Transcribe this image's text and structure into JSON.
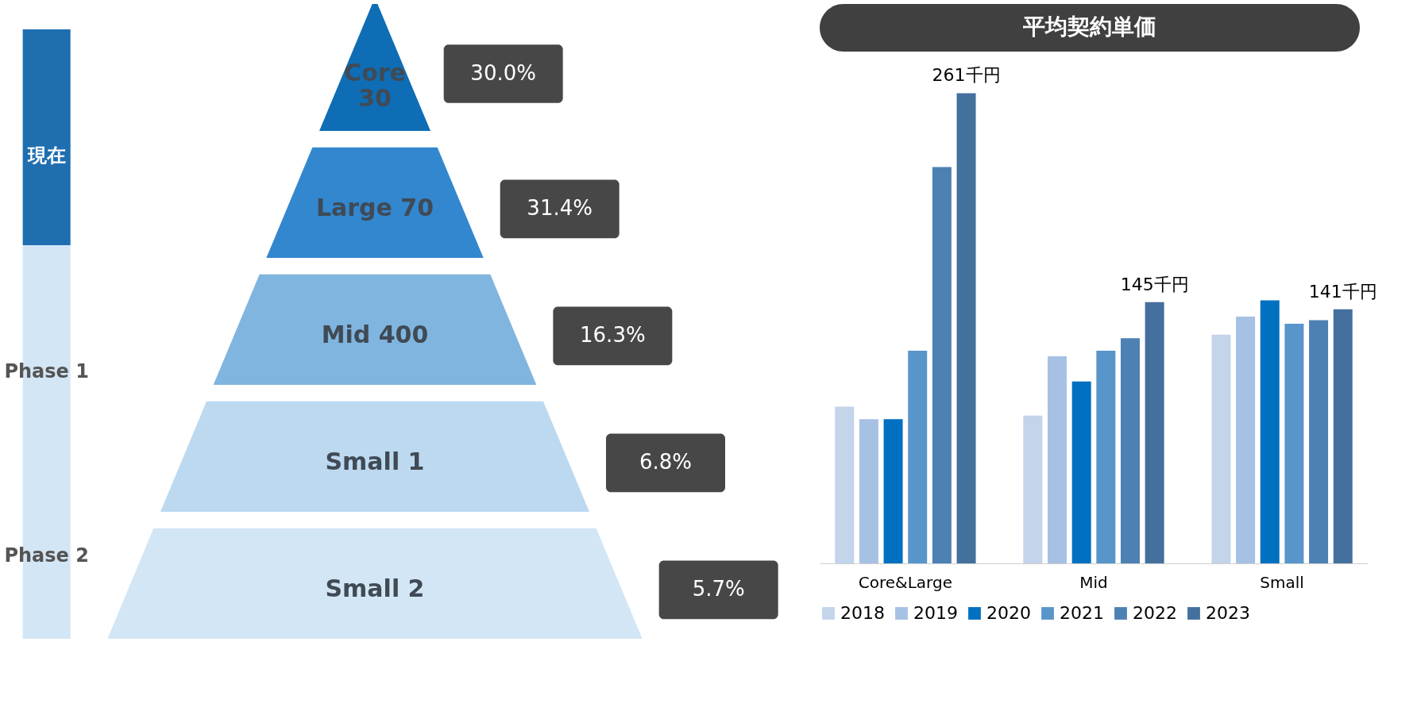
{
  "chart_data": [
    {
      "type": "other",
      "categories": [
        "Core\n30",
        "Large 70",
        "Mid 400",
        "Small 1",
        "Small 2"
      ],
      "value_labels": [
        "30.0%",
        "31.4%",
        "16.3%",
        "6.8%",
        "5.7%"
      ],
      "colors": [
        "#0e6db5",
        "#3287cf",
        "#80b5df",
        "#bcd9f0",
        "#d3e6f6"
      ],
      "annotations": [
        "現在",
        "Phase 1",
        "Phase 2"
      ]
    },
    {
      "type": "bar",
      "title": "平均契約単価",
      "legend": "bottom",
      "categories": [
        "Core&Large",
        "Mid",
        "Small"
      ],
      "series": [
        {
          "name": "2018",
          "color": "#c3d4eb",
          "values": [
            87,
            82,
            127
          ]
        },
        {
          "name": "2019",
          "color": "#a6c1e4",
          "values": [
            80,
            115,
            137
          ]
        },
        {
          "name": "2020",
          "color": "#0070c0",
          "values": [
            80,
            101,
            146
          ]
        },
        {
          "name": "2021",
          "color": "#5895cb",
          "values": [
            118,
            118,
            133
          ]
        },
        {
          "name": "2022",
          "color": "#4d81b4",
          "values": [
            220,
            125,
            135
          ]
        },
        {
          "name": "2023",
          "color": "#44709d",
          "values": [
            261,
            145,
            141
          ],
          "value_labels": [
            "261千円",
            "145千円",
            "141千円"
          ]
        }
      ]
    }
  ]
}
